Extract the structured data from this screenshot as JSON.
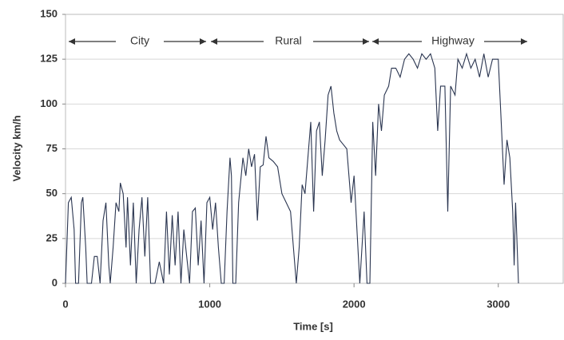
{
  "chart_data": {
    "type": "line",
    "x_label": "Time [s]",
    "y_label": "Velocity km/h",
    "annotations": [
      "City",
      "Rural",
      "Highway"
    ],
    "xlim": [
      0,
      3450
    ],
    "xticks": [
      0,
      1000,
      2000,
      3000
    ],
    "ylim": [
      0,
      150
    ],
    "yticks": [
      0,
      25,
      50,
      75,
      100,
      125,
      150
    ],
    "grid": true,
    "series": [
      {
        "color": "#2a3550",
        "x": [
          0,
          20,
          40,
          60,
          70,
          90,
          110,
          120,
          140,
          150,
          180,
          200,
          220,
          240,
          260,
          280,
          300,
          310,
          330,
          350,
          370,
          380,
          400,
          420,
          430,
          450,
          470,
          490,
          510,
          530,
          550,
          570,
          590,
          620,
          650,
          680,
          700,
          720,
          740,
          760,
          780,
          800,
          820,
          840,
          860,
          880,
          900,
          920,
          940,
          960,
          980,
          1000,
          1020,
          1040,
          1060,
          1080,
          1100,
          1120,
          1140,
          1150,
          1160,
          1180,
          1200,
          1230,
          1250,
          1270,
          1290,
          1310,
          1330,
          1350,
          1370,
          1390,
          1410,
          1440,
          1470,
          1500,
          1530,
          1560,
          1600,
          1620,
          1640,
          1660,
          1680,
          1700,
          1720,
          1740,
          1760,
          1780,
          1800,
          1820,
          1840,
          1860,
          1880,
          1900,
          1920,
          1950,
          1980,
          2000,
          2020,
          2040,
          2070,
          2090,
          2110,
          2130,
          2150,
          2170,
          2190,
          2210,
          2240,
          2260,
          2290,
          2320,
          2350,
          2380,
          2410,
          2440,
          2470,
          2500,
          2530,
          2560,
          2580,
          2600,
          2630,
          2650,
          2670,
          2700,
          2720,
          2750,
          2780,
          2810,
          2840,
          2870,
          2900,
          2930,
          2960,
          3000,
          3020,
          3040,
          3060,
          3080,
          3100,
          3110,
          3120,
          3140
        ],
        "values": [
          0,
          45,
          48,
          30,
          0,
          0,
          45,
          48,
          20,
          0,
          0,
          15,
          15,
          0,
          35,
          45,
          10,
          0,
          20,
          45,
          40,
          56,
          50,
          20,
          48,
          10,
          45,
          0,
          30,
          48,
          15,
          48,
          0,
          0,
          12,
          0,
          40,
          5,
          38,
          10,
          40,
          0,
          30,
          15,
          0,
          40,
          42,
          10,
          35,
          0,
          45,
          48,
          30,
          45,
          20,
          0,
          0,
          40,
          70,
          60,
          0,
          0,
          45,
          70,
          60,
          75,
          65,
          72,
          35,
          65,
          66,
          82,
          70,
          68,
          65,
          50,
          45,
          40,
          0,
          20,
          55,
          50,
          70,
          90,
          40,
          85,
          90,
          60,
          80,
          105,
          110,
          95,
          85,
          80,
          78,
          75,
          45,
          60,
          30,
          0,
          40,
          0,
          0,
          90,
          60,
          100,
          85,
          105,
          110,
          120,
          120,
          115,
          125,
          128,
          125,
          120,
          128,
          125,
          128,
          120,
          85,
          110,
          110,
          40,
          110,
          105,
          125,
          120,
          128,
          120,
          125,
          115,
          128,
          115,
          125,
          125,
          90,
          55,
          80,
          70,
          40,
          10,
          45,
          0
        ]
      }
    ]
  }
}
